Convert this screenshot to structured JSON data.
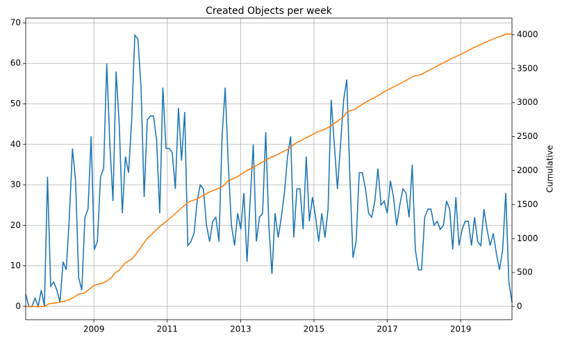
{
  "chart_data": {
    "type": "line",
    "title": "Created Objects per week",
    "y2label": "Cumulative",
    "xlim": [
      2007.14,
      2020.4
    ],
    "xticks": [
      2009,
      2011,
      2013,
      2015,
      2017,
      2019
    ],
    "ylim": [
      -3.3,
      71.2
    ],
    "yticks": [
      0,
      10,
      20,
      30,
      40,
      50,
      60,
      70
    ],
    "y2lim": [
      -194,
      4245
    ],
    "y2ticks": [
      0,
      500,
      1000,
      1500,
      2000,
      2500,
      3000,
      3500,
      4000
    ],
    "grid": true,
    "series": [
      {
        "color": "#1f77b4",
        "x": [
          2007.14,
          2007.225,
          2007.31,
          2007.395,
          2007.48,
          2007.565,
          2007.65,
          2007.735,
          2007.82,
          2007.905,
          2007.99,
          2008.075,
          2008.16,
          2008.245,
          2008.33,
          2008.415,
          2008.5,
          2008.585,
          2008.67,
          2008.755,
          2008.84,
          2008.925,
          2009.01,
          2009.095,
          2009.18,
          2009.265,
          2009.35,
          2009.435,
          2009.52,
          2009.605,
          2009.69,
          2009.775,
          2009.86,
          2009.945,
          2010.03,
          2010.115,
          2010.2,
          2010.285,
          2010.37,
          2010.455,
          2010.54,
          2010.625,
          2010.71,
          2010.795,
          2010.88,
          2010.965,
          2011.05,
          2011.135,
          2011.22,
          2011.305,
          2011.39,
          2011.475,
          2011.56,
          2011.645,
          2011.73,
          2011.815,
          2011.9,
          2011.985,
          2012.07,
          2012.155,
          2012.24,
          2012.325,
          2012.41,
          2012.495,
          2012.58,
          2012.665,
          2012.75,
          2012.835,
          2012.92,
          2013.005,
          2013.09,
          2013.175,
          2013.26,
          2013.345,
          2013.43,
          2013.515,
          2013.6,
          2013.685,
          2013.77,
          2013.855,
          2013.94,
          2014.025,
          2014.11,
          2014.195,
          2014.28,
          2014.365,
          2014.45,
          2014.535,
          2014.62,
          2014.705,
          2014.79,
          2014.875,
          2014.96,
          2015.045,
          2015.13,
          2015.215,
          2015.3,
          2015.385,
          2015.47,
          2015.555,
          2015.64,
          2015.725,
          2015.81,
          2015.895,
          2015.98,
          2016.065,
          2016.15,
          2016.235,
          2016.32,
          2016.405,
          2016.49,
          2016.575,
          2016.66,
          2016.745,
          2016.83,
          2016.915,
          2017.0,
          2017.085,
          2017.17,
          2017.255,
          2017.34,
          2017.425,
          2017.51,
          2017.595,
          2017.68,
          2017.765,
          2017.85,
          2017.935,
          2018.02,
          2018.105,
          2018.19,
          2018.275,
          2018.36,
          2018.445,
          2018.53,
          2018.615,
          2018.7,
          2018.785,
          2018.87,
          2018.955,
          2019.04,
          2019.125,
          2019.21,
          2019.295,
          2019.38,
          2019.465,
          2019.55,
          2019.635,
          2019.72,
          2019.805,
          2019.89,
          2019.975,
          2020.06,
          2020.145,
          2020.23,
          2020.315,
          2020.4
        ],
        "values": [
          3,
          0,
          0,
          2,
          0,
          4,
          0,
          32,
          5,
          6,
          4,
          1,
          11,
          9,
          22,
          39,
          31,
          7,
          4,
          22,
          24,
          42,
          14,
          16,
          32,
          34,
          60,
          40,
          26,
          58,
          45,
          23,
          37,
          33,
          46,
          67,
          66,
          54,
          27,
          46,
          47,
          47,
          41,
          23,
          54,
          39,
          39,
          38,
          29,
          49,
          36,
          48,
          15,
          16,
          18,
          26,
          30,
          29,
          20,
          16,
          21,
          22,
          16,
          42,
          54,
          35,
          20,
          15,
          23,
          19,
          28,
          11,
          26,
          40,
          16,
          22,
          23,
          43,
          20,
          8,
          23,
          17,
          22,
          28,
          37,
          42,
          17,
          29,
          29,
          19,
          37,
          21,
          27,
          22,
          16,
          23,
          17,
          24,
          51,
          40,
          29,
          40,
          51,
          56,
          32,
          12,
          16,
          33,
          33,
          29,
          23,
          22,
          26,
          34,
          25,
          26,
          23,
          31,
          27,
          20,
          25,
          29,
          28,
          22,
          35,
          14,
          9,
          9,
          22,
          24,
          24,
          20,
          21,
          19,
          20,
          26,
          24,
          14,
          27,
          15,
          19,
          21,
          21,
          15,
          22,
          16,
          15,
          24,
          19,
          15,
          18,
          13,
          9,
          14,
          28,
          6,
          1
        ]
      },
      {
        "color": "#ff7f0e",
        "axis": "y2",
        "x": [
          2007.14,
          2007.64,
          2007.77,
          2008.05,
          2008.34,
          2008.49,
          2008.58,
          2008.75,
          2008.91,
          2009.0,
          2009.28,
          2009.47,
          2009.57,
          2009.7,
          2009.85,
          2010.04,
          2010.23,
          2010.42,
          2010.61,
          2010.8,
          2010.99,
          2011.18,
          2011.41,
          2011.56,
          2011.84,
          2012.13,
          2012.5,
          2012.66,
          2012.88,
          2013.17,
          2013.45,
          2013.73,
          2014.02,
          2014.3,
          2014.49,
          2014.78,
          2015.06,
          2015.34,
          2015.63,
          2015.82,
          2015.91,
          2016.1,
          2016.39,
          2016.67,
          2016.95,
          2017.24,
          2017.52,
          2017.71,
          2017.9,
          2018.19,
          2018.47,
          2018.75,
          2019.04,
          2019.32,
          2019.61,
          2019.89,
          2020.11,
          2020.23,
          2020.4
        ],
        "values": [
          0,
          0,
          40,
          60,
          100,
          150,
          180,
          200,
          270,
          310,
          350,
          420,
          490,
          540,
          640,
          700,
          830,
          980,
          1080,
          1180,
          1260,
          1350,
          1460,
          1530,
          1590,
          1680,
          1760,
          1850,
          1900,
          2000,
          2080,
          2170,
          2240,
          2320,
          2400,
          2480,
          2560,
          2620,
          2720,
          2800,
          2870,
          2900,
          3000,
          3080,
          3170,
          3250,
          3330,
          3390,
          3410,
          3490,
          3570,
          3650,
          3720,
          3800,
          3870,
          3940,
          3980,
          4010,
          4010
        ]
      }
    ]
  }
}
